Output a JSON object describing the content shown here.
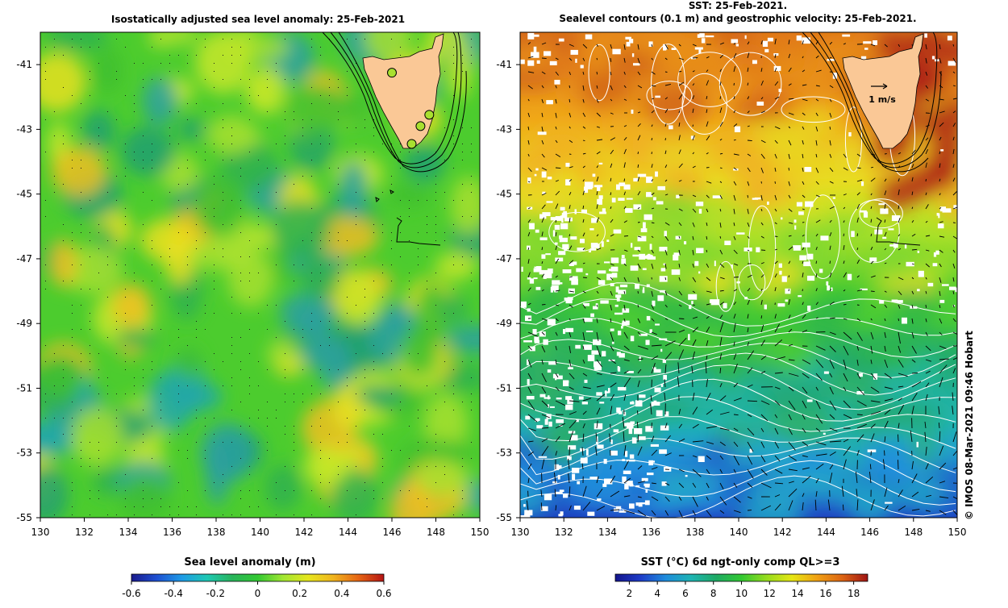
{
  "left_panel": {
    "title": "Isostatically adjusted sea level anomaly: 25-Feb-2021",
    "x_ticks": [
      "130",
      "132",
      "134",
      "136",
      "138",
      "140",
      "142",
      "144",
      "146",
      "148",
      "150"
    ],
    "y_ticks": [
      "-41",
      "-43",
      "-45",
      "-47",
      "-49",
      "-51",
      "-53",
      "-55"
    ],
    "lon_range": [
      130,
      150
    ],
    "lat_range": [
      -55,
      -40
    ],
    "colorbar": {
      "title": "Sea level anomaly (m)",
      "ticks": [
        "-0.6",
        "-0.4",
        "-0.2",
        "0",
        "0.2",
        "0.4",
        "0.6"
      ],
      "range": [
        -0.6,
        0.6
      ],
      "colors": [
        "#1a1a8c",
        "#1e50d2",
        "#1e9be6",
        "#1ec8b4",
        "#28b45a",
        "#32c832",
        "#a0e632",
        "#e6e61e",
        "#f0b41e",
        "#e66414",
        "#b41414"
      ]
    },
    "land_color": "#fac896",
    "markers": [
      {
        "lon": 146.0,
        "lat": -41.25
      },
      {
        "lon": 147.7,
        "lat": -42.55
      },
      {
        "lon": 147.3,
        "lat": -42.9
      },
      {
        "lon": 146.9,
        "lat": -43.45
      }
    ]
  },
  "right_panel": {
    "title_line1": "SST: 25-Feb-2021.",
    "title_line2": "Sealevel contours (0.1 m) and geostrophic velocity: 25-Feb-2021.",
    "x_ticks": [
      "130",
      "132",
      "134",
      "136",
      "138",
      "140",
      "142",
      "144",
      "146",
      "148",
      "150"
    ],
    "y_ticks": [
      "-41",
      "-43",
      "-45",
      "-47",
      "-49",
      "-51",
      "-53",
      "-55"
    ],
    "lon_range": [
      130,
      150
    ],
    "lat_range": [
      -55,
      -40
    ],
    "velocity_scale_label": "1 m/s",
    "colorbar": {
      "title": "SST (°C) 6d ngt-only comp QL>=3",
      "ticks": [
        "2",
        "4",
        "6",
        "8",
        "10",
        "12",
        "14",
        "16",
        "18"
      ],
      "range": [
        1,
        19
      ],
      "colors": [
        "#14148c",
        "#1e3cc8",
        "#1e8cdc",
        "#1eb4b4",
        "#1eaa64",
        "#32c832",
        "#96dc1e",
        "#e6e614",
        "#f0a014",
        "#dc6414",
        "#a01414"
      ]
    }
  },
  "credit": "© IMOS 08-Mar-2021 09:46 Hobart"
}
